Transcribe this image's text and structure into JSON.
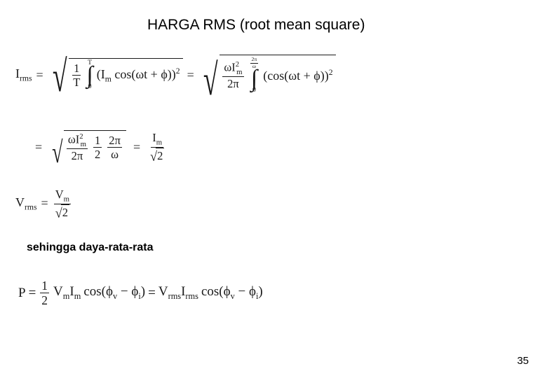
{
  "title": "HARGA RMS (root mean square)",
  "subheading": "sehingga daya-rata-rata",
  "page_number": "35",
  "eq1": {
    "lhs_base": "I",
    "lhs_sub": "rms",
    "eq": "=",
    "sqrt1": {
      "frac_num": "1",
      "frac_den": "T",
      "int_lo": "0",
      "int_hi": "T",
      "body_open": "(I",
      "body_sub": "m",
      "body_cos": " cos(ωt + ϕ))",
      "body_pow": "2"
    },
    "eq2": "=",
    "sqrt2": {
      "frac_num_a": "ωI",
      "frac_num_sub": "m",
      "frac_num_pow": "2",
      "frac_den": "2π",
      "int_lo": "0",
      "int_hi_num": "2π",
      "int_hi_den": "ω",
      "body": "(cos(ωt + ϕ))",
      "body_pow": "2"
    }
  },
  "eq2row": {
    "eq": "=",
    "sqrt": {
      "t1_num_a": "ωI",
      "t1_num_sub": "m",
      "t1_num_pow": "2",
      "t1_den": "2π",
      "t2_num": "1",
      "t2_den": "2",
      "t3_num": "2π",
      "t3_den": "ω"
    },
    "rhs_eq": "=",
    "rhs_num": "I",
    "rhs_num_sub": "m",
    "rhs_den_sqrt": "2"
  },
  "eq3": {
    "lhs_base": "V",
    "lhs_sub": "rms",
    "eq": "=",
    "num": "V",
    "num_sub": "m",
    "den_sqrt": "2"
  },
  "eq4": {
    "lhs": "P",
    "eq": "=",
    "half_num": "1",
    "half_den": "2",
    "vm": "V",
    "vm_sub": "m",
    "im": "I",
    "im_sub": "m",
    "cos1": " cos(ϕ",
    "phi_v": "v",
    "minus": " − ϕ",
    "phi_i": "i",
    "close": ")",
    "eq2": " = ",
    "vrms": "V",
    "vrms_sub": "rms",
    "irms": "I",
    "irms_sub": "rms",
    "cos2": " cos(ϕ",
    "phi_v2": "v",
    "minus2": " − ϕ",
    "phi_i2": "i",
    "close2": ")"
  },
  "colors": {
    "text": "#000000",
    "math": "#1a1a1a",
    "bg": "#ffffff"
  },
  "fontsize": {
    "title": 21,
    "subheading": 16,
    "math": 18,
    "pagenum": 15
  }
}
